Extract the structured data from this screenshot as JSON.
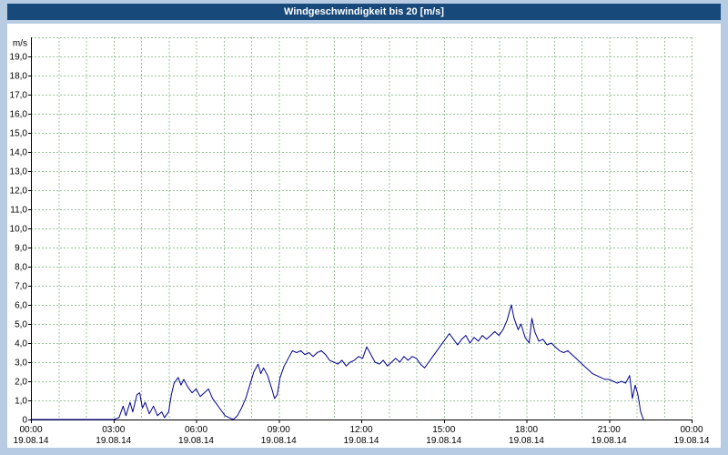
{
  "title": "Windgeschwindigkeit bis 20 [m/s]",
  "colors": {
    "frame_bg": "#b7cce2",
    "titlebar_bg": "#17497a",
    "titlebar_text": "#ffffff",
    "plot_bg": "#ffffff",
    "grid": "#9cc39c",
    "axis": "#000000",
    "series_line": "#00008b"
  },
  "chart_data": {
    "type": "line",
    "title": "Windgeschwindigkeit bis 20 [m/s]",
    "xlabel": "",
    "ylabel": "m/s",
    "unit_label": "m/s",
    "ylim": [
      0,
      20
    ],
    "x_range_hours": [
      0,
      24
    ],
    "grid": true,
    "legend": "none",
    "y_ticks": [
      {
        "value": 19,
        "label": "19,0"
      },
      {
        "value": 18,
        "label": "18,0"
      },
      {
        "value": 17,
        "label": "17,0"
      },
      {
        "value": 16,
        "label": "16,0"
      },
      {
        "value": 15,
        "label": "15,0"
      },
      {
        "value": 14,
        "label": "14,0"
      },
      {
        "value": 13,
        "label": "13,0"
      },
      {
        "value": 12,
        "label": "12,0"
      },
      {
        "value": 11,
        "label": "11,0"
      },
      {
        "value": 10,
        "label": "10,0"
      },
      {
        "value": 9,
        "label": "9,0"
      },
      {
        "value": 8,
        "label": "8,0"
      },
      {
        "value": 7,
        "label": "7,0"
      },
      {
        "value": 6,
        "label": "6,0"
      },
      {
        "value": 5,
        "label": "5,0"
      },
      {
        "value": 4,
        "label": "4,0"
      },
      {
        "value": 3,
        "label": "3,0"
      },
      {
        "value": 2,
        "label": "2,0"
      },
      {
        "value": 1,
        "label": "1,0"
      },
      {
        "value": 0,
        "label": "0"
      }
    ],
    "x_ticks": [
      {
        "hour": 0,
        "time": "00:00",
        "date": "19.08.14"
      },
      {
        "hour": 3,
        "time": "03:00",
        "date": "19.08.14"
      },
      {
        "hour": 6,
        "time": "06:00",
        "date": "19.08.14"
      },
      {
        "hour": 9,
        "time": "09:00",
        "date": "19.08.14"
      },
      {
        "hour": 12,
        "time": "12:00",
        "date": "19.08.14"
      },
      {
        "hour": 15,
        "time": "15:00",
        "date": "19.08.14"
      },
      {
        "hour": 18,
        "time": "18:00",
        "date": "19.08.14"
      },
      {
        "hour": 21,
        "time": "21:00",
        "date": "19.08.14"
      },
      {
        "hour": 24,
        "time": "00:00",
        "date": "19.08.14"
      }
    ],
    "series": [
      {
        "name": "Windgeschwindigkeit",
        "color": "#00008b",
        "points": [
          [
            0,
            0
          ],
          [
            0.25,
            0
          ],
          [
            0.5,
            0
          ],
          [
            0.75,
            0
          ],
          [
            1,
            0
          ],
          [
            1.25,
            0
          ],
          [
            1.5,
            0
          ],
          [
            1.75,
            0
          ],
          [
            2,
            0
          ],
          [
            2.25,
            0
          ],
          [
            2.5,
            0
          ],
          [
            2.75,
            0
          ],
          [
            3,
            0
          ],
          [
            3.2,
            0.1
          ],
          [
            3.35,
            0.7
          ],
          [
            3.45,
            0.2
          ],
          [
            3.6,
            0.9
          ],
          [
            3.7,
            0.4
          ],
          [
            3.85,
            1.3
          ],
          [
            3.95,
            1.4
          ],
          [
            4.05,
            0.6
          ],
          [
            4.15,
            0.9
          ],
          [
            4.3,
            0.3
          ],
          [
            4.45,
            0.7
          ],
          [
            4.6,
            0.2
          ],
          [
            4.75,
            0.4
          ],
          [
            4.85,
            0.1
          ],
          [
            5,
            0.4
          ],
          [
            5.1,
            1.3
          ],
          [
            5.2,
            1.9
          ],
          [
            5.35,
            2.2
          ],
          [
            5.45,
            1.8
          ],
          [
            5.55,
            2.1
          ],
          [
            5.7,
            1.7
          ],
          [
            5.85,
            1.4
          ],
          [
            6,
            1.6
          ],
          [
            6.15,
            1.2
          ],
          [
            6.3,
            1.4
          ],
          [
            6.45,
            1.6
          ],
          [
            6.6,
            1.1
          ],
          [
            6.75,
            0.8
          ],
          [
            6.9,
            0.5
          ],
          [
            7.05,
            0.2
          ],
          [
            7.2,
            0.1
          ],
          [
            7.35,
            0
          ],
          [
            7.5,
            0.2
          ],
          [
            7.65,
            0.6
          ],
          [
            7.8,
            1.1
          ],
          [
            7.95,
            1.8
          ],
          [
            8.1,
            2.5
          ],
          [
            8.25,
            2.9
          ],
          [
            8.35,
            2.4
          ],
          [
            8.45,
            2.7
          ],
          [
            8.6,
            2.3
          ],
          [
            8.75,
            1.6
          ],
          [
            8.85,
            1.1
          ],
          [
            8.95,
            1.3
          ],
          [
            9.05,
            2.2
          ],
          [
            9.2,
            2.8
          ],
          [
            9.35,
            3.2
          ],
          [
            9.5,
            3.6
          ],
          [
            9.65,
            3.5
          ],
          [
            9.8,
            3.6
          ],
          [
            9.95,
            3.4
          ],
          [
            10.1,
            3.5
          ],
          [
            10.25,
            3.3
          ],
          [
            10.4,
            3.5
          ],
          [
            10.55,
            3.6
          ],
          [
            10.7,
            3.4
          ],
          [
            10.85,
            3.1
          ],
          [
            11,
            3
          ],
          [
            11.15,
            2.9
          ],
          [
            11.3,
            3.1
          ],
          [
            11.45,
            2.8
          ],
          [
            11.6,
            3
          ],
          [
            11.75,
            3.1
          ],
          [
            11.9,
            3.3
          ],
          [
            12.05,
            3.2
          ],
          [
            12.2,
            3.8
          ],
          [
            12.35,
            3.4
          ],
          [
            12.5,
            3
          ],
          [
            12.65,
            2.9
          ],
          [
            12.8,
            3.1
          ],
          [
            12.95,
            2.8
          ],
          [
            13.1,
            3
          ],
          [
            13.25,
            3.2
          ],
          [
            13.4,
            3
          ],
          [
            13.55,
            3.3
          ],
          [
            13.7,
            3.1
          ],
          [
            13.85,
            3.3
          ],
          [
            14,
            3.2
          ],
          [
            14.15,
            2.9
          ],
          [
            14.3,
            2.7
          ],
          [
            14.45,
            3
          ],
          [
            14.6,
            3.3
          ],
          [
            14.75,
            3.6
          ],
          [
            14.9,
            3.9
          ],
          [
            15.05,
            4.2
          ],
          [
            15.2,
            4.5
          ],
          [
            15.35,
            4.2
          ],
          [
            15.5,
            3.9
          ],
          [
            15.65,
            4.2
          ],
          [
            15.8,
            4.4
          ],
          [
            15.95,
            4
          ],
          [
            16.1,
            4.3
          ],
          [
            16.25,
            4.1
          ],
          [
            16.4,
            4.4
          ],
          [
            16.55,
            4.2
          ],
          [
            16.7,
            4.4
          ],
          [
            16.85,
            4.6
          ],
          [
            17,
            4.4
          ],
          [
            17.15,
            4.7
          ],
          [
            17.3,
            5.2
          ],
          [
            17.45,
            6
          ],
          [
            17.55,
            5.3
          ],
          [
            17.7,
            4.7
          ],
          [
            17.8,
            5
          ],
          [
            17.95,
            4.3
          ],
          [
            18.1,
            4
          ],
          [
            18.2,
            5.3
          ],
          [
            18.3,
            4.6
          ],
          [
            18.45,
            4.1
          ],
          [
            18.6,
            4.2
          ],
          [
            18.75,
            3.9
          ],
          [
            18.9,
            4
          ],
          [
            19.05,
            3.8
          ],
          [
            19.2,
            3.6
          ],
          [
            19.35,
            3.5
          ],
          [
            19.5,
            3.6
          ],
          [
            19.65,
            3.4
          ],
          [
            19.8,
            3.2
          ],
          [
            19.95,
            3
          ],
          [
            20.1,
            2.8
          ],
          [
            20.25,
            2.6
          ],
          [
            20.4,
            2.4
          ],
          [
            20.55,
            2.3
          ],
          [
            20.7,
            2.2
          ],
          [
            20.85,
            2.1
          ],
          [
            21,
            2.1
          ],
          [
            21.15,
            2
          ],
          [
            21.3,
            1.9
          ],
          [
            21.45,
            2
          ],
          [
            21.6,
            1.9
          ],
          [
            21.75,
            2.3
          ],
          [
            21.85,
            1.1
          ],
          [
            21.95,
            1.8
          ],
          [
            22.05,
            1.3
          ],
          [
            22.15,
            0.4
          ],
          [
            22.25,
            0
          ]
        ]
      }
    ]
  }
}
